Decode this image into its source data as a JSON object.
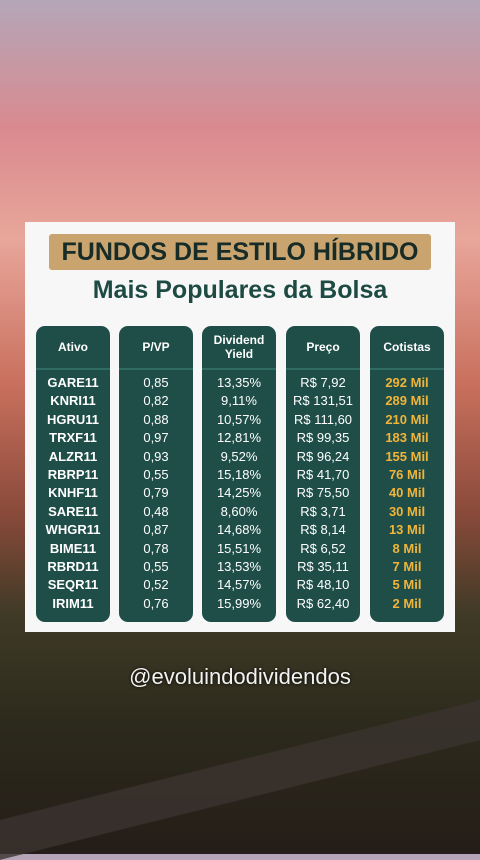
{
  "header": {
    "title": "FUNDOS DE ESTILO HÍBRIDO",
    "subtitle": "Mais Populares da Bolsa"
  },
  "table": {
    "columns": [
      "Ativo",
      "P/VP",
      "Dividend Yield",
      "Preço",
      "Cotistas"
    ],
    "rows": [
      [
        "GARE11",
        "0,85",
        "13,35%",
        "R$ 7,92",
        "292 Mil"
      ],
      [
        "KNRI11",
        "0,82",
        "9,11%",
        "R$ 131,51",
        "289 Mil"
      ],
      [
        "HGRU11",
        "0,88",
        "10,57%",
        "R$ 111,60",
        "210 Mil"
      ],
      [
        "TRXF11",
        "0,97",
        "12,81%",
        "R$ 99,35",
        "183 Mil"
      ],
      [
        "ALZR11",
        "0,93",
        "9,52%",
        "R$ 96,24",
        "155 Mil"
      ],
      [
        "RBRP11",
        "0,55",
        "15,18%",
        "R$ 41,70",
        "76 Mil"
      ],
      [
        "KNHF11",
        "0,79",
        "14,25%",
        "R$ 75,50",
        "40 Mil"
      ],
      [
        "SARE11",
        "0,48",
        "8,60%",
        "R$ 3,71",
        "30 Mil"
      ],
      [
        "WHGR11",
        "0,87",
        "14,68%",
        "R$ 8,14",
        "13 Mil"
      ],
      [
        "BIME11",
        "0,78",
        "15,51%",
        "R$ 6,52",
        "8 Mil"
      ],
      [
        "RBRD11",
        "0,55",
        "13,53%",
        "R$ 35,11",
        "7 Mil"
      ],
      [
        "SEQR11",
        "0,52",
        "14,57%",
        "R$ 48,10",
        "5 Mil"
      ],
      [
        "IRIM11",
        "0,76",
        "15,99%",
        "R$ 62,40",
        "2 Mil"
      ]
    ]
  },
  "watermark": "@evoluindodividendos"
}
